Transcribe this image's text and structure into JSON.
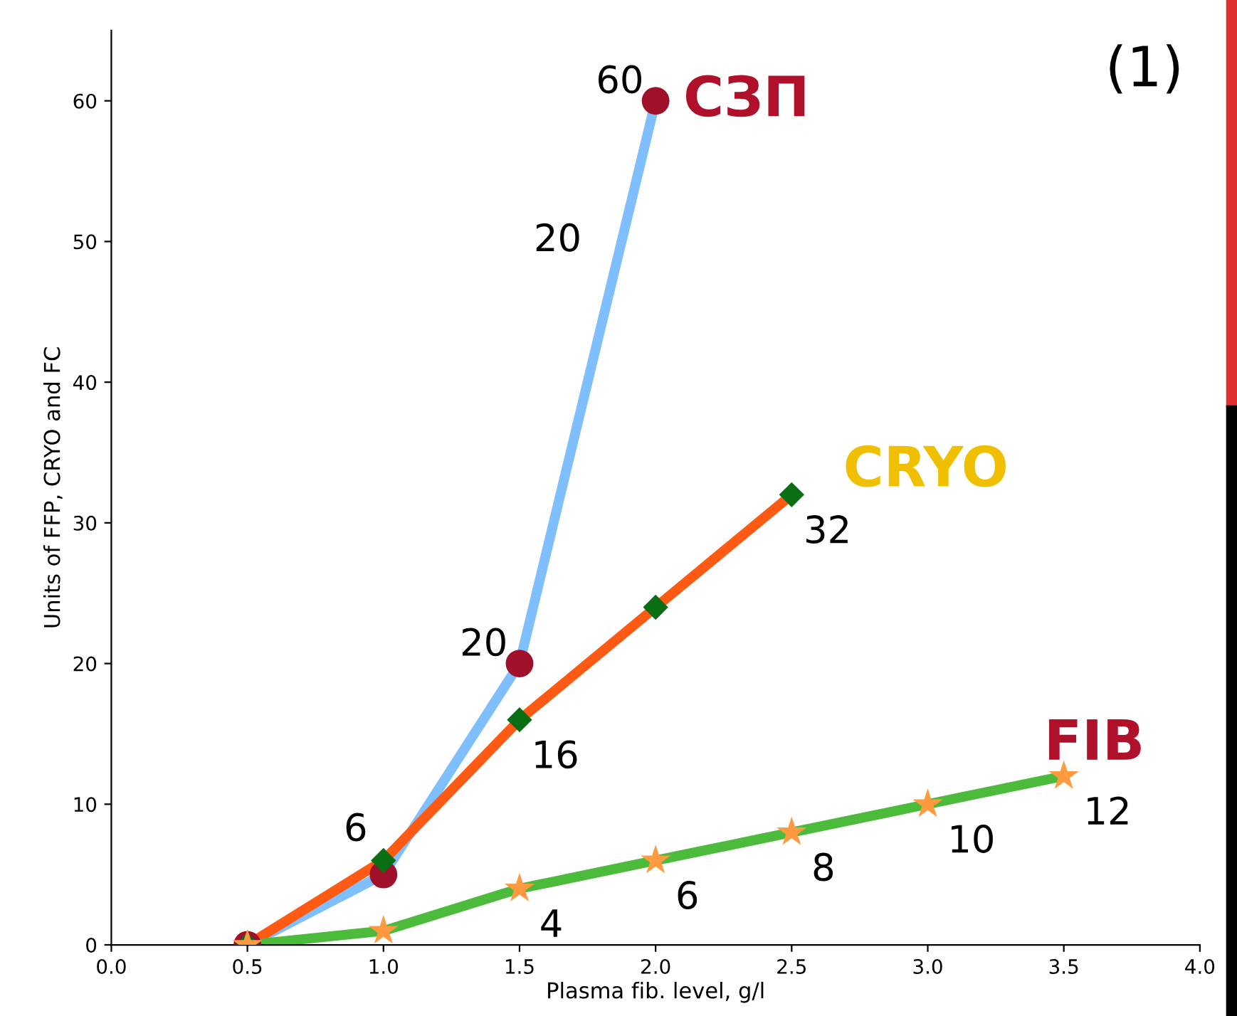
{
  "chart_data": {
    "type": "line",
    "xlabel": "Plasma fib. level, g/l",
    "ylabel": "Units of FFP, CRYO and FC",
    "xlim": [
      0,
      4
    ],
    "xticks": [
      {
        "value": 0,
        "label": "0.0"
      },
      {
        "value": 0.5,
        "label": "0.5"
      },
      {
        "value": 1,
        "label": "1.0"
      },
      {
        "value": 1.5,
        "label": "1.5"
      },
      {
        "value": 2,
        "label": "2.0"
      },
      {
        "value": 2.5,
        "label": "2.5"
      },
      {
        "value": 3,
        "label": "3.0"
      },
      {
        "value": 3.5,
        "label": "3.5"
      },
      {
        "value": 4,
        "label": "4.0"
      }
    ],
    "ylim": [
      0,
      65
    ],
    "yticks": [
      0,
      10,
      20,
      30,
      40,
      50,
      60
    ],
    "grid": false,
    "legend": false,
    "line_style": "solid",
    "series": [
      {
        "name": "СЗП",
        "color": "#7fbfff",
        "marker": "circle",
        "colors": [
          "#a0102a",
          "#a0102a",
          "#a0102a",
          "#a0102a"
        ],
        "x": [
          0.5,
          1.0,
          1.5,
          2.0
        ],
        "values": [
          0,
          5,
          20,
          60
        ],
        "value_labels": [
          null,
          null,
          "20",
          "60"
        ]
      },
      {
        "name": "CRYO",
        "color": "#ff5a14",
        "marker": "diamond",
        "colors": [
          "#0a6e14",
          "#0a6e14",
          "#0a6e14",
          "#0a6e14",
          "#0a6e14"
        ],
        "x": [
          0.5,
          1.0,
          1.5,
          2.0,
          2.5
        ],
        "values": [
          0,
          6,
          16,
          24,
          32
        ],
        "value_labels": [
          null,
          "6",
          "16",
          null,
          "32"
        ]
      },
      {
        "name": "FIB",
        "color": "#4cbb3c",
        "marker": "star",
        "colors": [
          "#ff9a40",
          "#ff9a40",
          "#ff9a40",
          "#ff9a40",
          "#ff9a40",
          "#ff9a40",
          "#ff9a40"
        ],
        "x": [
          0.5,
          1.0,
          1.5,
          2.0,
          2.5,
          3.0,
          3.5
        ],
        "values": [
          0,
          1,
          4,
          6,
          8,
          10,
          12
        ],
        "value_labels": [
          null,
          null,
          "4",
          "6",
          "8",
          "10",
          "12"
        ]
      }
    ],
    "annotations": [
      "20",
      "(1)"
    ]
  }
}
